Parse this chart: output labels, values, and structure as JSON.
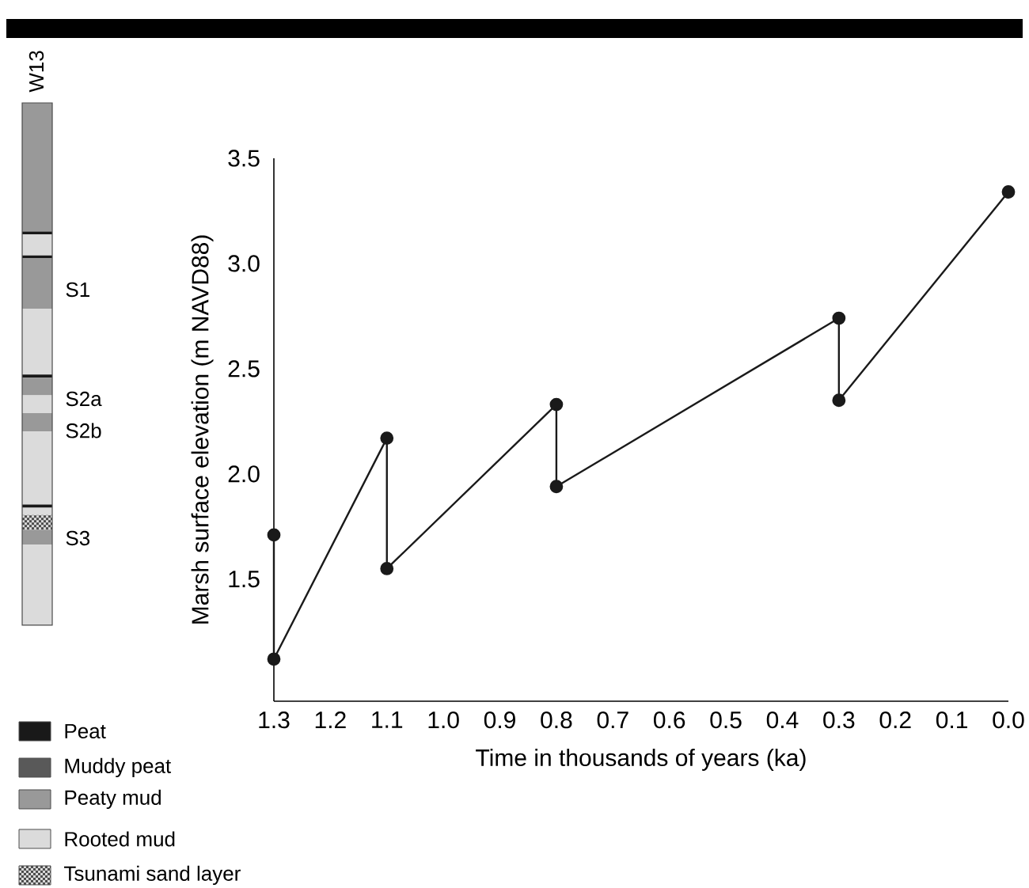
{
  "chart_data": {
    "type": "line",
    "xlabel": "Time in thousands of years (ka)",
    "ylabel": "Marsh surface elevation (m NAVD88)",
    "x": [
      1.3,
      1.3,
      1.1,
      1.1,
      0.8,
      0.8,
      0.3,
      0.3,
      0.0
    ],
    "values": [
      1.71,
      1.12,
      2.17,
      1.55,
      2.33,
      1.94,
      2.74,
      2.35,
      3.34
    ],
    "color": "#1a1a1a",
    "marker": "circle",
    "line_style": "solid",
    "grid": false,
    "xlim": [
      1.3,
      0.0
    ],
    "ylim": [
      0.92,
      3.5
    ],
    "xticks": [
      {
        "value": 1.3,
        "label": "1.3"
      },
      {
        "value": 1.2,
        "label": "1.2"
      },
      {
        "value": 1.1,
        "label": "1.1"
      },
      {
        "value": 1.0,
        "label": "1.0"
      },
      {
        "value": 0.9,
        "label": "0.9"
      },
      {
        "value": 0.8,
        "label": "0.8"
      },
      {
        "value": 0.7,
        "label": "0.7"
      },
      {
        "value": 0.6,
        "label": "0.6"
      },
      {
        "value": 0.5,
        "label": "0.5"
      },
      {
        "value": 0.4,
        "label": "0.4"
      },
      {
        "value": 0.3,
        "label": "0.3"
      },
      {
        "value": 0.2,
        "label": "0.2"
      },
      {
        "value": 0.1,
        "label": "0.1"
      },
      {
        "value": 0.0,
        "label": "0.0"
      }
    ],
    "yticks": [
      {
        "value": 1.5,
        "label": "1.5"
      },
      {
        "value": 2.0,
        "label": "2.0"
      },
      {
        "value": 2.5,
        "label": "2.5"
      },
      {
        "value": 3.0,
        "label": "3.0"
      },
      {
        "value": 3.5,
        "label": "3.5"
      }
    ],
    "annotations": [
      "W13",
      "S1",
      "S2a",
      "S2b",
      "S3",
      "Peat",
      "Muddy peat",
      "Peaty mud",
      "Rooted mud",
      "Tsunami sand layer"
    ]
  }
}
